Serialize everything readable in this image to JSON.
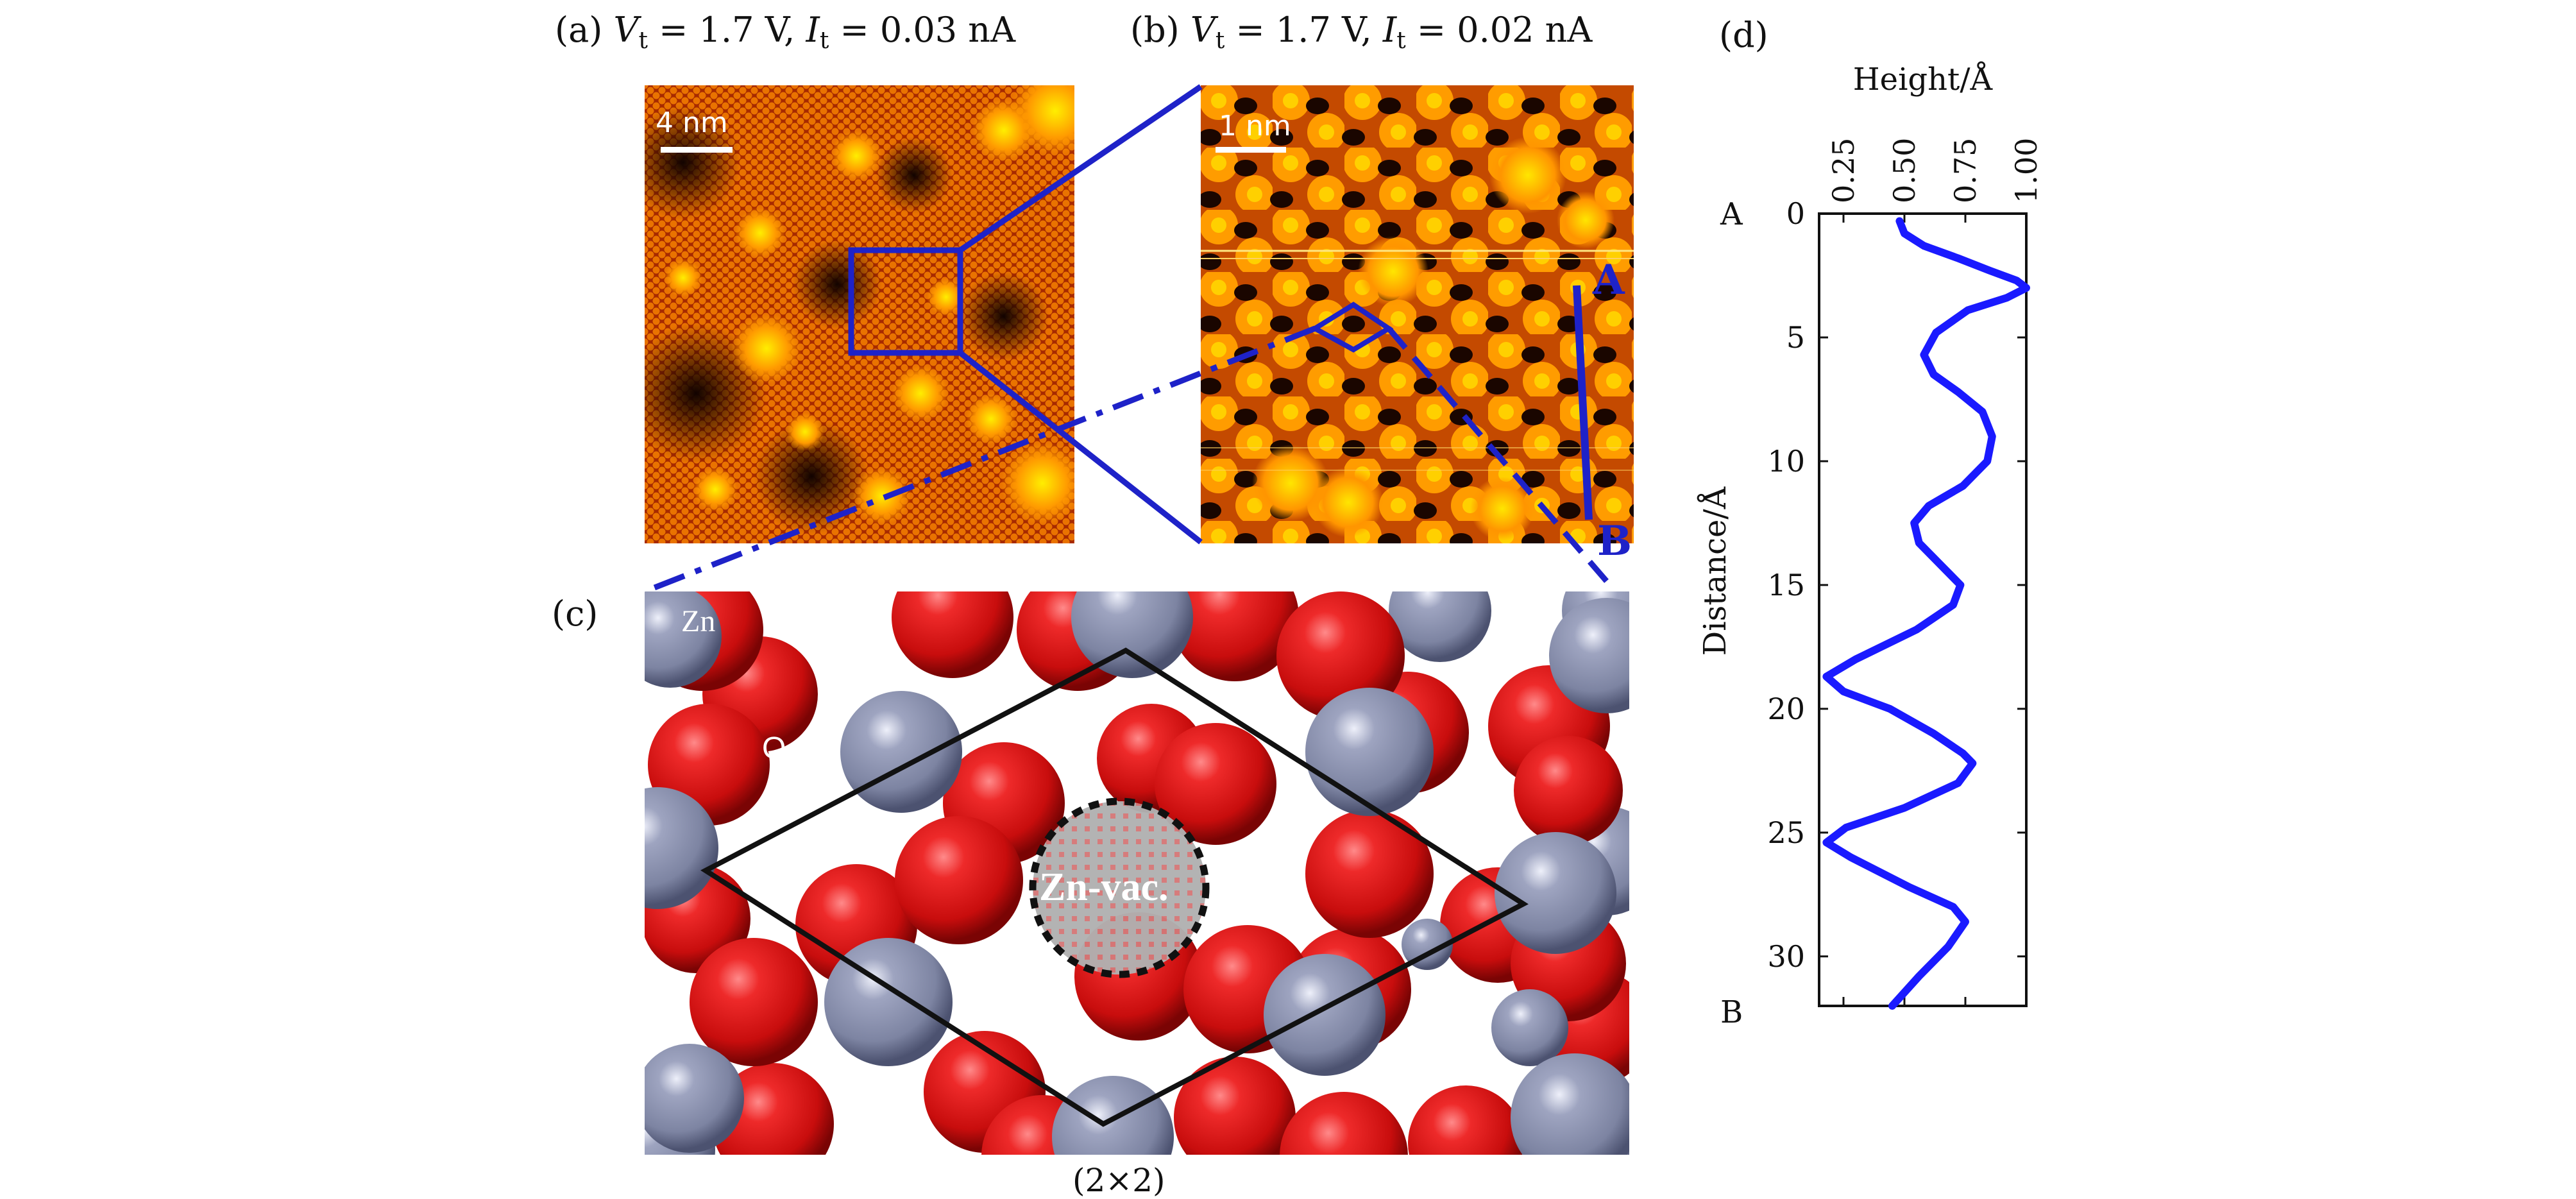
{
  "panels": {
    "a": {
      "letter": "(a)",
      "v_sym": "V",
      "v_sub": "t",
      "v_val": " = 1.7 V,",
      "i_sym": "I",
      "i_sub": "t",
      "i_val": " = 0.03 nA",
      "scale_label": "4 nm"
    },
    "b": {
      "letter": "(b)",
      "v_sym": "V",
      "v_sub": "t",
      "v_val": " = 1.7 V,",
      "i_sym": "I",
      "i_sub": "t",
      "i_val": " = 0.02 nA",
      "scale_label": "1 nm",
      "point_a": "A",
      "point_b": "B"
    },
    "c": {
      "letter": "(c)",
      "zn_label": "Zn",
      "o_label": "O",
      "vacancy_label": "Zn-vac.",
      "cell_label": "(2×2)"
    },
    "d": {
      "letter": "(d)"
    }
  },
  "colors": {
    "frame_blue": "#1e22c8",
    "oxygen_red": "#d81e1e",
    "zinc_gray": "#8990ab",
    "profile_blue": "#1a1aff",
    "stm_dark": "#1a0600",
    "stm_bright": "#ffee00"
  },
  "chart_data": {
    "type": "line",
    "title": "",
    "xlabel": "Height/Å",
    "ylabel": "Distance/Å",
    "xlim": [
      0.15,
      1.0
    ],
    "ylim": [
      0,
      32
    ],
    "y_inverted": true,
    "x_axis_position": "top",
    "xticks": [
      0.25,
      0.5,
      0.75,
      1.0
    ],
    "xtick_labels": [
      "0.25",
      "0.50",
      "0.75",
      "1.00"
    ],
    "yticks": [
      0,
      5,
      10,
      15,
      20,
      25,
      30
    ],
    "ytick_labels": [
      "0",
      "5",
      "10",
      "15",
      "20",
      "25",
      "30"
    ],
    "endpoint_labels": {
      "top": "A",
      "bottom": "B"
    },
    "series": [
      {
        "x": [
          0.48,
          0.5,
          0.58,
          0.72,
          0.85,
          0.96,
          1.0,
          0.92,
          0.76,
          0.63,
          0.58,
          0.62,
          0.72,
          0.82,
          0.86,
          0.84,
          0.74,
          0.6,
          0.54,
          0.56,
          0.66,
          0.73,
          0.7,
          0.55,
          0.3,
          0.18,
          0.25,
          0.44,
          0.62,
          0.74,
          0.78,
          0.72,
          0.5,
          0.26,
          0.18,
          0.28,
          0.52,
          0.7,
          0.75,
          0.68,
          0.56,
          0.45
        ],
        "y": [
          0.3,
          0.8,
          1.3,
          1.8,
          2.3,
          2.7,
          3.0,
          3.4,
          3.9,
          4.8,
          5.7,
          6.5,
          7.2,
          8.0,
          9.0,
          10.0,
          11.0,
          11.8,
          12.5,
          13.3,
          14.3,
          15.0,
          15.8,
          16.8,
          18.0,
          18.7,
          19.3,
          20.0,
          21.0,
          21.8,
          22.2,
          23.0,
          24.0,
          24.8,
          25.4,
          26.0,
          27.2,
          28.0,
          28.6,
          29.6,
          30.8,
          32.0
        ]
      }
    ]
  }
}
